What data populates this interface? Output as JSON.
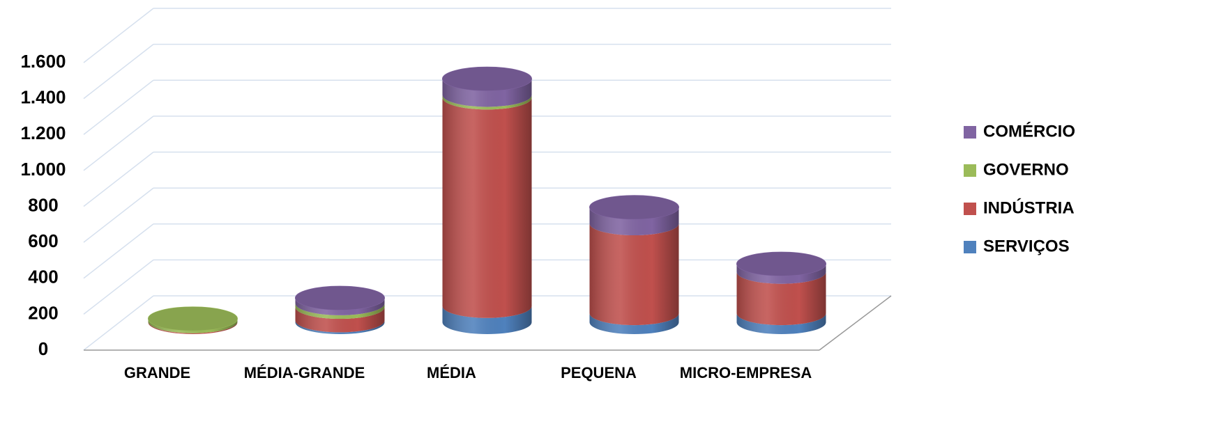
{
  "chart_data": {
    "type": "bar3d_cylinder_stacked",
    "categories": [
      "GRANDE",
      "MÉDIA-GRANDE",
      "MÉDIA",
      "PEQUENA",
      "MICRO-EMPRESA"
    ],
    "series": [
      {
        "name": "SERVIÇOS",
        "color": "#4f81bd",
        "values": [
          0,
          10,
          90,
          50,
          50
        ]
      },
      {
        "name": "INDÚSTRIA",
        "color": "#c0504d",
        "values": [
          5,
          75,
          1160,
          500,
          230
        ]
      },
      {
        "name": "GOVERNO",
        "color": "#9bbb59",
        "values": [
          15,
          20,
          15,
          0,
          0
        ]
      },
      {
        "name": "COMÉRCIO",
        "color": "#8064a2",
        "values": [
          0,
          30,
          90,
          90,
          45
        ]
      }
    ],
    "ylim": [
      0,
      1600
    ],
    "yticks": [
      0,
      200,
      400,
      600,
      800,
      {
        "value": 1000,
        "label": "1.000"
      },
      {
        "value": 1200,
        "label": "1.200"
      },
      {
        "value": 1400,
        "label": "1.400"
      },
      {
        "value": 1600,
        "label": "1.600"
      }
    ],
    "grid": true,
    "legend": "right"
  }
}
